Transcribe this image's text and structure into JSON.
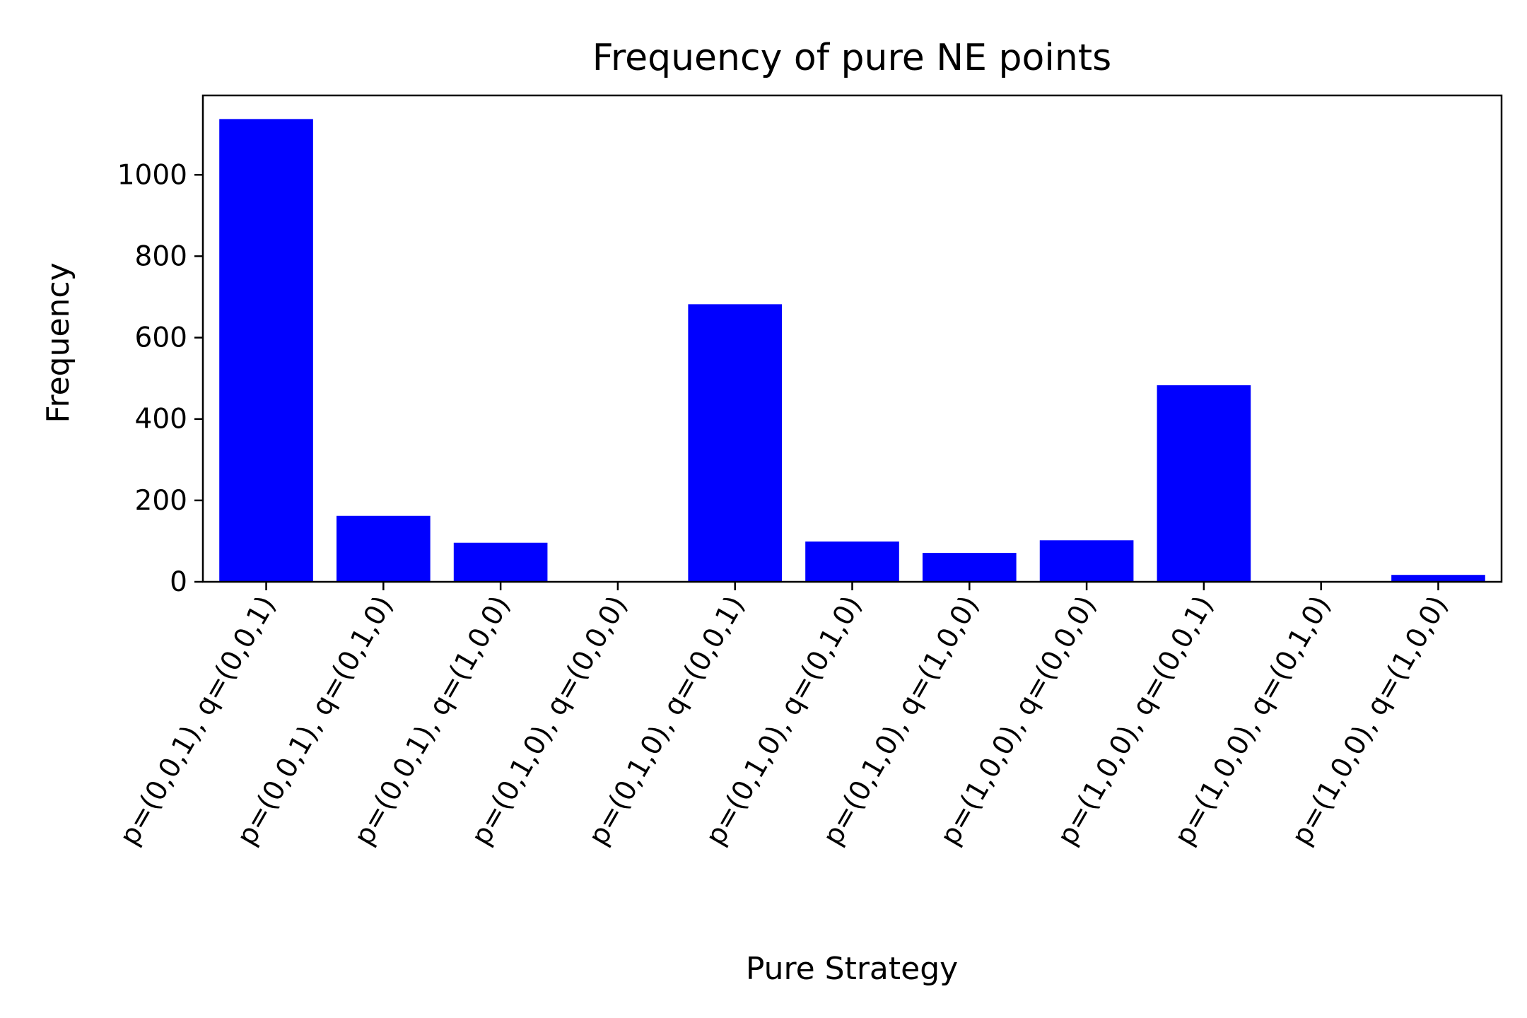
{
  "chart_data": {
    "type": "bar",
    "title": "Frequency of pure NE points",
    "xlabel": "Pure Strategy",
    "ylabel": "Frequency",
    "categories": [
      "p=(0,0,1), q=(0,0,1)",
      "p=(0,0,1), q=(0,1,0)",
      "p=(0,0,1), q=(1,0,0)",
      "p=(0,1,0), q=(0,0,0)",
      "p=(0,1,0), q=(0,0,1)",
      "p=(0,1,0), q=(0,1,0)",
      "p=(0,1,0), q=(1,0,0)",
      "p=(1,0,0), q=(0,0,0)",
      "p=(1,0,0), q=(0,0,1)",
      "p=(1,0,0), q=(0,1,0)",
      "p=(1,0,0), q=(1,0,0)"
    ],
    "values": [
      1137,
      162,
      96,
      0,
      682,
      99,
      71,
      102,
      483,
      0,
      17
    ],
    "ylim": [
      0,
      1195
    ],
    "yticks": [
      0,
      200,
      400,
      600,
      800,
      1000
    ],
    "grid": false,
    "legend": "none",
    "colors": {
      "bar": "#0000ff",
      "axis": "#000000",
      "background": "#ffffff"
    }
  }
}
